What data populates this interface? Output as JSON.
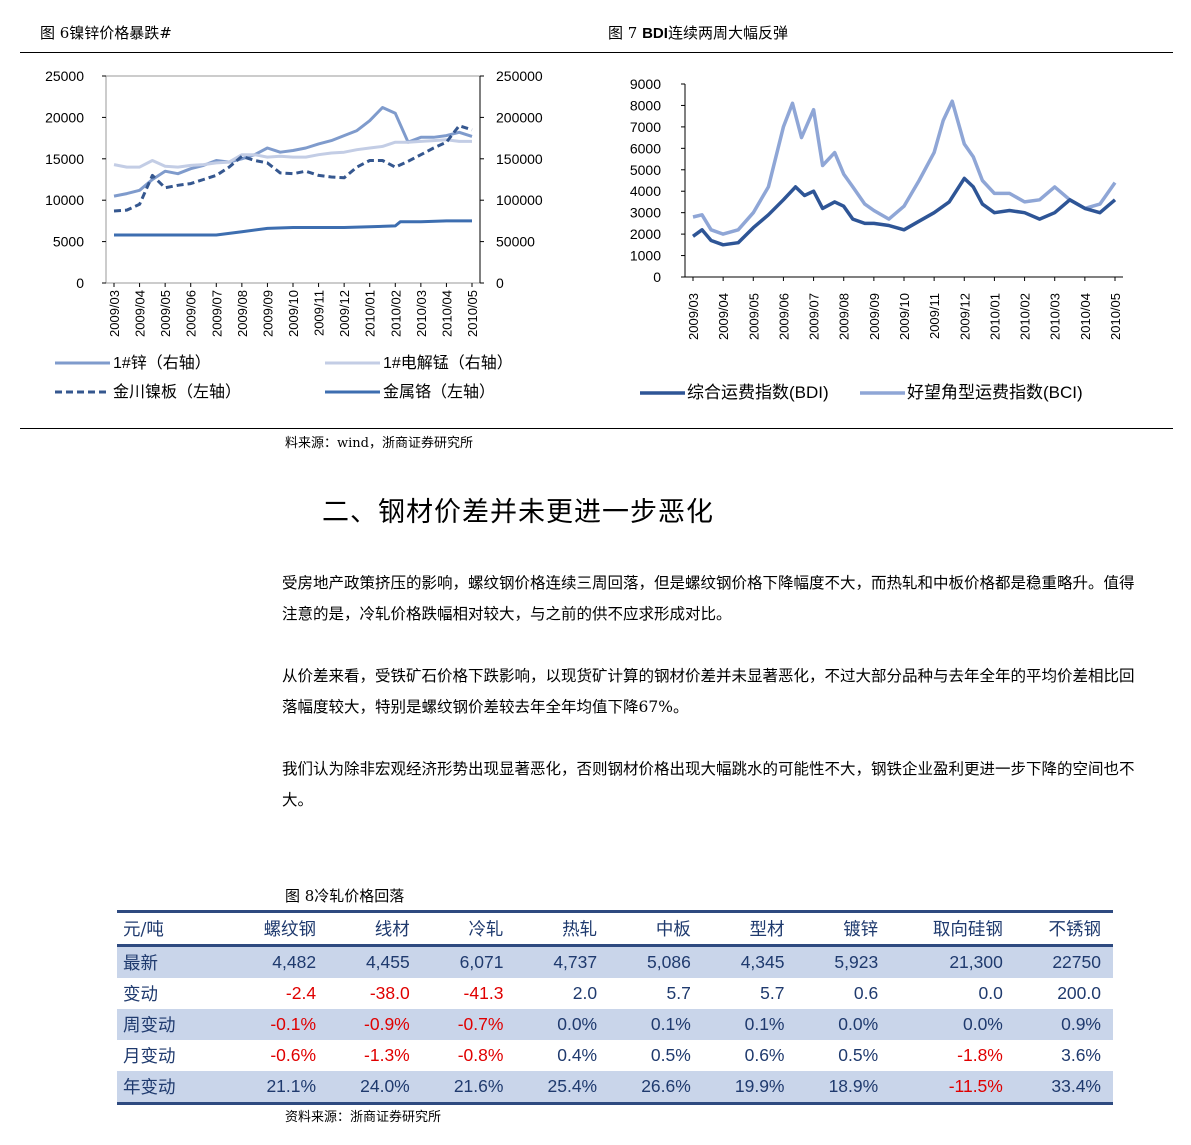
{
  "fig6": {
    "title": "图 6镍锌价格暴跌#",
    "chart_data": {
      "type": "line",
      "x_ticks": [
        "2009/03",
        "2009/04",
        "2009/05",
        "2009/06",
        "2009/07",
        "2009/08",
        "2009/09",
        "2009/10",
        "2009/11",
        "2009/12",
        "2010/01",
        "2010/02",
        "2010/03",
        "2010/04",
        "2010/05"
      ],
      "y_left_ticks": [
        "0",
        "5000",
        "10000",
        "15000",
        "20000",
        "25000"
      ],
      "y_right_ticks": [
        "0",
        "50000",
        "100000",
        "150000",
        "200000",
        "250000"
      ],
      "ylim_left": [
        0,
        25000
      ],
      "ylim_right": [
        0,
        250000
      ],
      "series": [
        {
          "name": "1#锌（右轴）",
          "axis": "right",
          "color": "#7f9bcc",
          "dash": false,
          "x": [
            0,
            0.5,
            1,
            1.5,
            2,
            2.5,
            3,
            3.5,
            4,
            4.5,
            5,
            5.5,
            6,
            6.5,
            7,
            7.5,
            8,
            8.5,
            9,
            9.5,
            10,
            10.5,
            11,
            11.5,
            12,
            12.5,
            13,
            13.5,
            14
          ],
          "values": [
            105000,
            108000,
            112000,
            125000,
            135000,
            132000,
            138000,
            142000,
            148000,
            146000,
            150000,
            155000,
            163000,
            158000,
            160000,
            163000,
            168000,
            172000,
            178000,
            184000,
            196000,
            212000,
            205000,
            170000,
            176000,
            176000,
            178000,
            182000,
            177000
          ]
        },
        {
          "name": "1#电解锰（右轴）",
          "axis": "right",
          "color": "#c3cde5",
          "dash": false,
          "x": [
            0,
            0.5,
            1,
            1.5,
            2,
            2.5,
            3,
            3.5,
            4,
            4.5,
            5,
            5.5,
            6,
            6.5,
            7,
            7.5,
            8,
            8.5,
            9,
            9.5,
            10,
            10.5,
            11,
            11.5,
            12,
            12.5,
            13,
            13.5,
            14
          ],
          "values": [
            143000,
            140000,
            140000,
            148000,
            141000,
            140000,
            142000,
            143000,
            145000,
            146000,
            155000,
            155000,
            152000,
            153000,
            152000,
            152000,
            155000,
            157000,
            158000,
            161000,
            163000,
            165000,
            170000,
            170000,
            171000,
            172000,
            173000,
            171000,
            171000
          ]
        },
        {
          "name": "金川镍板（左轴）",
          "axis": "left",
          "color": "#35578f",
          "dash": true,
          "x": [
            0,
            0.5,
            1,
            1.5,
            2,
            2.5,
            3,
            3.5,
            4,
            4.5,
            5,
            5.5,
            6,
            6.5,
            7,
            7.5,
            8,
            8.5,
            9,
            9.5,
            10,
            10.5,
            11,
            11.5,
            12,
            12.5,
            13,
            13.5,
            14
          ],
          "values": [
            8700,
            8800,
            9500,
            13000,
            11500,
            11800,
            12000,
            12500,
            13000,
            14000,
            15300,
            14800,
            14500,
            13300,
            13200,
            13500,
            13000,
            12800,
            12700,
            14000,
            14800,
            14800,
            14000,
            14700,
            15500,
            16300,
            17000,
            19000,
            18500
          ]
        },
        {
          "name": "金属铬（左轴）",
          "axis": "left",
          "color": "#3d6eb0",
          "dash": false,
          "x": [
            0,
            1,
            2,
            3,
            4,
            5,
            6,
            7,
            8,
            9,
            10,
            11,
            11.2,
            12,
            13,
            14
          ],
          "values": [
            5800,
            5800,
            5800,
            5800,
            5800,
            6200,
            6600,
            6700,
            6700,
            6700,
            6800,
            6900,
            7400,
            7400,
            7500,
            7500
          ]
        }
      ]
    }
  },
  "fig7": {
    "title_prefix": "图 7 ",
    "title_bold": "BDI",
    "title_rest": "连续两周大幅反弹",
    "chart_data": {
      "type": "line",
      "x_ticks": [
        "2009/03",
        "2009/04",
        "2009/05",
        "2009/06",
        "2009/07",
        "2009/08",
        "2009/09",
        "2009/10",
        "2009/11",
        "2009/12",
        "2010/01",
        "2010/02",
        "2010/03",
        "2010/04",
        "2010/05"
      ],
      "y_ticks": [
        "0",
        "1000",
        "2000",
        "3000",
        "4000",
        "5000",
        "6000",
        "7000",
        "8000",
        "9000"
      ],
      "ylim": [
        0,
        9000
      ],
      "series": [
        {
          "name": "综合运费指数(BDI)",
          "color": "#2e5596",
          "x": [
            0,
            0.3,
            0.6,
            1,
            1.5,
            2,
            2.5,
            3,
            3.4,
            3.7,
            4,
            4.3,
            4.7,
            5,
            5.3,
            5.7,
            6,
            6.5,
            7,
            7.5,
            8,
            8.5,
            9,
            9.3,
            9.6,
            10,
            10.5,
            11,
            11.5,
            12,
            12.5,
            13,
            13.5,
            14
          ],
          "values": [
            1900,
            2200,
            1700,
            1500,
            1600,
            2300,
            2900,
            3600,
            4200,
            3800,
            4000,
            3200,
            3500,
            3300,
            2700,
            2500,
            2500,
            2400,
            2200,
            2600,
            3000,
            3500,
            4600,
            4200,
            3400,
            3000,
            3100,
            3000,
            2700,
            3000,
            3600,
            3200,
            3000,
            3600
          ]
        },
        {
          "name": "好望角型运费指数(BCI)",
          "color": "#8fa6d6",
          "x": [
            0,
            0.3,
            0.6,
            1,
            1.5,
            2,
            2.5,
            3,
            3.3,
            3.6,
            4,
            4.3,
            4.7,
            5,
            5.3,
            5.7,
            6,
            6.5,
            7,
            7.5,
            8,
            8.3,
            8.6,
            9,
            9.3,
            9.6,
            10,
            10.5,
            11,
            11.5,
            12,
            12.5,
            13,
            13.5,
            14
          ],
          "values": [
            2800,
            2900,
            2200,
            2000,
            2200,
            3000,
            4200,
            7000,
            8100,
            6500,
            7800,
            5200,
            5800,
            4800,
            4200,
            3400,
            3100,
            2700,
            3300,
            4500,
            5800,
            7300,
            8200,
            6200,
            5600,
            4500,
            3900,
            3900,
            3500,
            3600,
            4200,
            3600,
            3200,
            3400,
            4400
          ]
        }
      ]
    }
  },
  "source_top": "料来源：wind，浙商证券研究所",
  "heading": "二、钢材价差并未更进一步恶化",
  "paragraphs": [
    "受房地产政策挤压的影响，螺纹钢价格连续三周回落，但是螺纹钢价格下降幅度不大，而热轧和中板价格都是稳重略升。值得注意的是，冷轧价格跌幅相对较大，与之前的供不应求形成对比。",
    "从价差来看，受铁矿石价格下跌影响，以现货矿计算的钢材价差并未显著恶化，不过大部分品种与去年全年的平均价差相比回落幅度较大，特别是螺纹钢价差较去年全年均值下降67%。",
    "我们认为除非宏观经济形势出现显著恶化，否则钢材价格出现大幅跳水的可能性不大，钢铁企业盈利更进一步下降的空间也不大。"
  ],
  "fig8": {
    "title": "图 8冷轧价格回落",
    "header": [
      "元/吨",
      "螺纹钢",
      "线材",
      "冷轧",
      "热轧",
      "中板",
      "型材",
      "镀锌",
      "取向硅钢",
      "不锈钢"
    ],
    "rows": [
      {
        "label": "最新",
        "cells": [
          "4,482",
          "4,455",
          "6,071",
          "4,737",
          "5,086",
          "4,345",
          "5,923",
          "21,300",
          "22750"
        ],
        "neg": [
          false,
          false,
          false,
          false,
          false,
          false,
          false,
          false,
          false
        ]
      },
      {
        "label": "变动",
        "cells": [
          "-2.4",
          "-38.0",
          "-41.3",
          "2.0",
          "5.7",
          "5.7",
          "0.6",
          "0.0",
          "200.0"
        ],
        "neg": [
          true,
          true,
          true,
          false,
          false,
          false,
          false,
          false,
          false
        ]
      },
      {
        "label": "周变动",
        "cells": [
          "-0.1%",
          "-0.9%",
          "-0.7%",
          "0.0%",
          "0.1%",
          "0.1%",
          "0.0%",
          "0.0%",
          "0.9%"
        ],
        "neg": [
          true,
          true,
          true,
          false,
          false,
          false,
          false,
          false,
          false
        ]
      },
      {
        "label": "月变动",
        "cells": [
          "-0.6%",
          "-1.3%",
          "-0.8%",
          "0.4%",
          "0.5%",
          "0.6%",
          "0.5%",
          "-1.8%",
          "3.6%"
        ],
        "neg": [
          true,
          true,
          true,
          false,
          false,
          false,
          false,
          true,
          false
        ]
      },
      {
        "label": "年变动",
        "cells": [
          "21.1%",
          "24.0%",
          "21.6%",
          "25.4%",
          "26.6%",
          "19.9%",
          "18.9%",
          "-11.5%",
          "33.4%"
        ],
        "neg": [
          false,
          false,
          false,
          false,
          false,
          false,
          false,
          true,
          false
        ]
      }
    ],
    "source": "资料来源：浙商证券研究所"
  }
}
